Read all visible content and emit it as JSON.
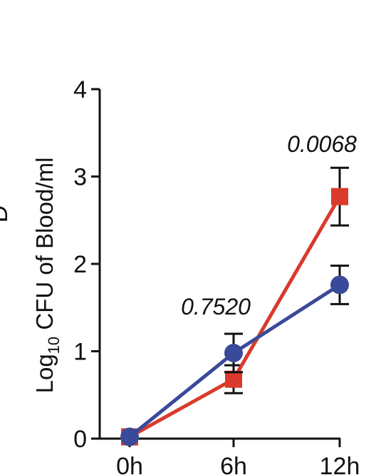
{
  "chart_data": {
    "type": "line",
    "categories": [
      "0h",
      "6h",
      "12h"
    ],
    "ylabel_prefix": "Log",
    "ylabel_subscript": "10",
    "ylabel_rest": " CFU of Blood/ml",
    "ylim": [
      0,
      4
    ],
    "yticks": [
      "0",
      "1",
      "2",
      "3",
      "4"
    ],
    "grid": false,
    "legend": "none",
    "series": [
      {
        "color": "#d93a2b",
        "marker": "square",
        "values": [
          0.02,
          0.68,
          2.77
        ],
        "error": [
          0.02,
          0.16,
          0.33
        ]
      },
      {
        "color": "#3a4a9a",
        "marker": "circle",
        "values": [
          0.02,
          0.98,
          1.76
        ],
        "error": [
          0.02,
          0.22,
          0.22
        ]
      }
    ],
    "annotations": [
      {
        "text": "0.7520",
        "x_index": 1,
        "y": 1.42
      },
      {
        "text": "0.0068",
        "x_index": 2,
        "y": 3.28
      }
    ],
    "edge_glyph": "D"
  }
}
